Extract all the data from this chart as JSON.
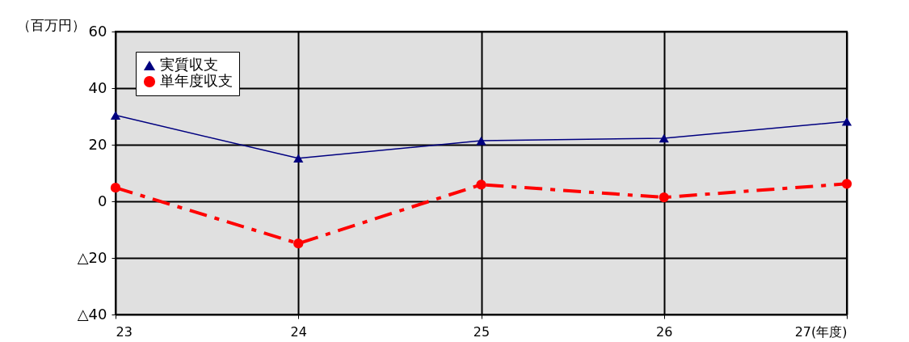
{
  "chart_data": {
    "type": "line",
    "ylabel": "（百万円）",
    "x": [
      23,
      24,
      25,
      26,
      27
    ],
    "series": [
      {
        "name": "実質収支",
        "color": "#000080",
        "values": [
          30.4,
          15.2,
          21.4,
          22.3,
          28.2
        ],
        "marker": "triangle",
        "line_style": "solid"
      },
      {
        "name": "単年度収支",
        "color": "#ff0000",
        "values": [
          4.8,
          -14.9,
          5.9,
          1.4,
          6.2
        ],
        "marker": "circle",
        "line_style": "dashed"
      }
    ],
    "xlim": [
      23,
      27
    ],
    "xticks": [
      23,
      24,
      25,
      26,
      {
        "value": 27,
        "label": "27(年度)"
      }
    ],
    "ylim": [
      -40,
      60
    ],
    "yticks": [
      {
        "value": -40,
        "label": "△40"
      },
      {
        "value": -20,
        "label": "△20"
      },
      0,
      20,
      40,
      60
    ],
    "grid": true,
    "legend": "top left"
  }
}
